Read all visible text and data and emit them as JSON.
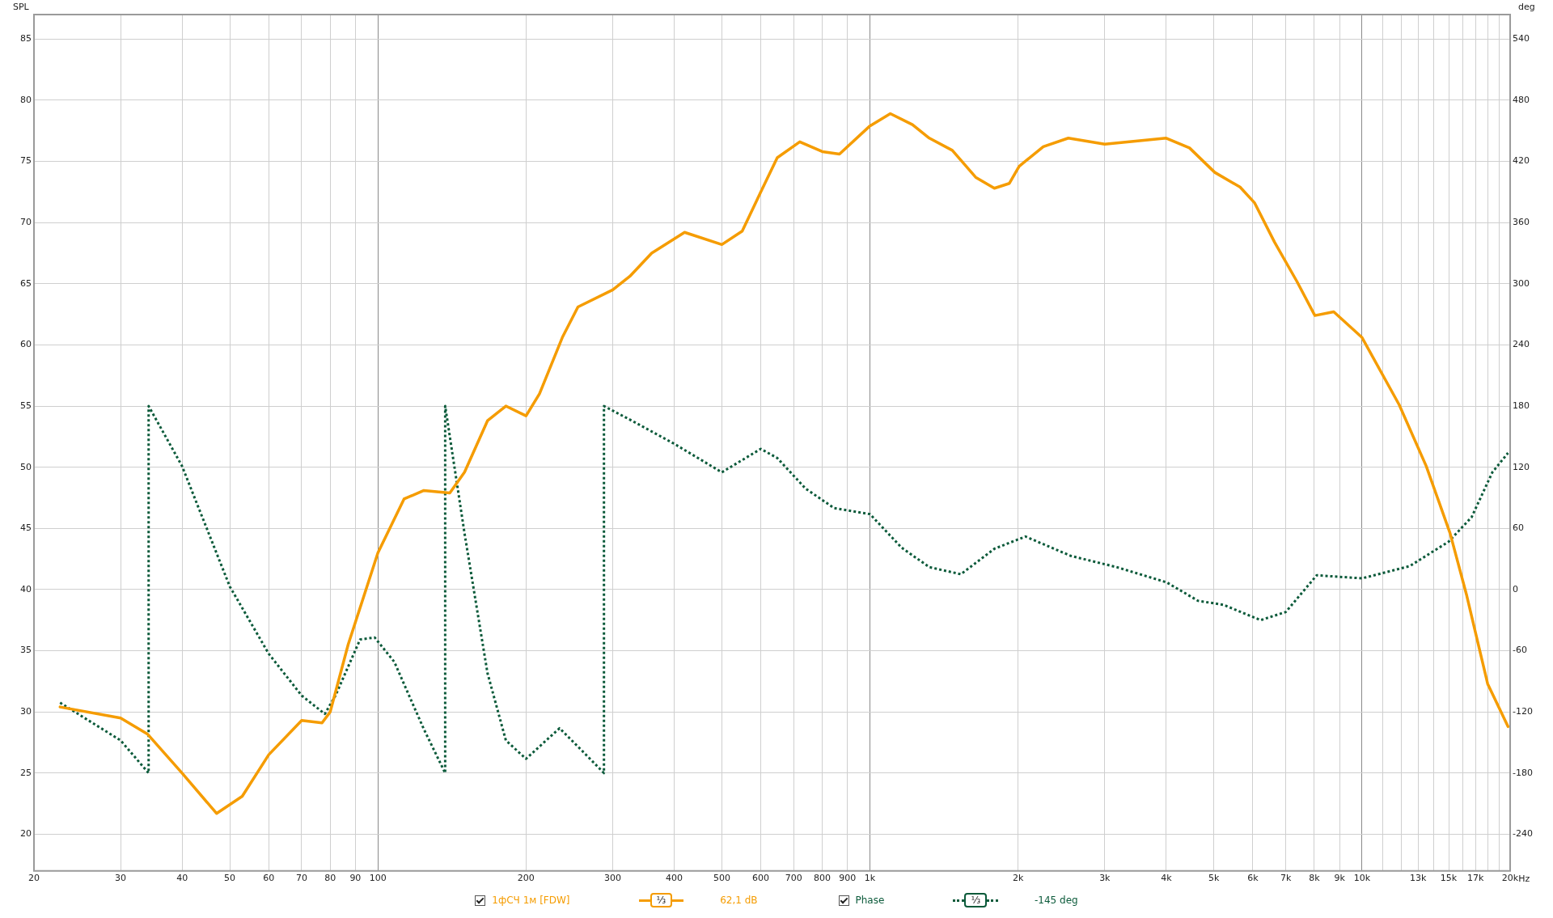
{
  "chart_data": {
    "type": "line",
    "ylabel": "SPL",
    "y2label": "deg",
    "log": "x",
    "grid": true,
    "legend": "bottom",
    "xlim": [
      20,
      20000
    ],
    "ylim": [
      17,
      87
    ],
    "y2lim": [
      -276,
      564
    ],
    "xticks": [
      20,
      30,
      40,
      50,
      60,
      70,
      80,
      90,
      100,
      200,
      300,
      400,
      500,
      600,
      700,
      800,
      900,
      {
        "value": 1000,
        "label": "1k"
      },
      {
        "value": 2000,
        "label": "2k"
      },
      {
        "value": 3000,
        "label": "3k"
      },
      {
        "value": 4000,
        "label": "4k"
      },
      {
        "value": 5000,
        "label": "5k"
      },
      {
        "value": 6000,
        "label": "6k"
      },
      {
        "value": 7000,
        "label": "7k"
      },
      {
        "value": 8000,
        "label": "8k"
      },
      {
        "value": 9000,
        "label": "9k"
      },
      {
        "value": 10000,
        "label": "10k"
      },
      {
        "value": 11000,
        "label": null
      },
      {
        "value": 12000,
        "label": null
      },
      {
        "value": 13000,
        "label": "13k"
      },
      {
        "value": 14000,
        "label": null
      },
      {
        "value": 15000,
        "label": "15k"
      },
      {
        "value": 16000,
        "label": null
      },
      {
        "value": 17000,
        "label": "17k"
      },
      {
        "value": 18000,
        "label": null
      },
      {
        "value": 19000,
        "label": null
      },
      {
        "value": 20000,
        "label": "20k"
      }
    ],
    "xlabel": "Hz",
    "yticks": [
      20,
      25,
      30,
      35,
      40,
      45,
      50,
      55,
      60,
      65,
      70,
      75,
      80,
      85
    ],
    "y2ticks": [
      -240,
      -180,
      -120,
      -60,
      0,
      60,
      120,
      180,
      240,
      300,
      360,
      420,
      480,
      540
    ],
    "annotations": [
      "⅓",
      "62,1 dB",
      "⅓",
      "-145 deg"
    ],
    "series": [
      {
        "name": "1фСЧ 1м [FDW]",
        "color": "#f59c00",
        "line_style": "solid",
        "x": [
          22.6,
          30,
          34,
          40,
          47,
          53,
          60,
          70,
          77,
          80,
          87,
          100,
          113,
          124,
          140,
          150,
          167,
          182,
          200,
          213,
          237,
          255,
          300,
          325,
          360,
          420,
          500,
          550,
          600,
          648,
          720,
          800,
          867,
          1000,
          1100,
          1220,
          1320,
          1470,
          1640,
          1790,
          1920,
          2010,
          2250,
          2530,
          3000,
          4000,
          4460,
          5020,
          5650,
          6050,
          6640,
          7370,
          8020,
          8760,
          10000,
          11900,
          13500,
          15100,
          16300,
          18000,
          19800
        ],
        "values": [
          30.4,
          29.5,
          28.2,
          25.0,
          21.7,
          23.1,
          26.5,
          29.3,
          29.1,
          30.0,
          35.5,
          43.0,
          47.4,
          48.1,
          47.9,
          49.6,
          53.8,
          55.0,
          54.2,
          56.0,
          60.6,
          63.1,
          64.5,
          65.6,
          67.5,
          69.2,
          68.2,
          69.3,
          72.5,
          75.3,
          76.6,
          75.8,
          75.6,
          77.9,
          78.9,
          78.0,
          76.9,
          75.9,
          73.7,
          72.8,
          73.2,
          74.6,
          76.2,
          76.9,
          76.4,
          76.9,
          76.1,
          74.1,
          72.9,
          71.6,
          68.4,
          65.2,
          62.4,
          62.7,
          60.6,
          55.1,
          50.1,
          44.6,
          39.6,
          32.3,
          28.8
        ]
      },
      {
        "name": "Phase",
        "axis": "y2",
        "color": "#0b5a3a",
        "line_style": "dotted",
        "x": [
          22.6,
          30,
          34.2,
          34.2,
          40,
          50,
          60,
          70,
          78,
          82,
          92,
          98.5,
          108,
          124,
          137,
          137,
          150,
          167,
          182,
          200,
          234,
          255,
          288,
          288,
          330,
          400,
          500,
          600,
          648,
          740,
          845,
          1000,
          1160,
          1320,
          1530,
          1790,
          2070,
          2560,
          3170,
          4010,
          4640,
          5230,
          6220,
          7000,
          8090,
          10000,
          12500,
          15000,
          16700,
          18400,
          19800
        ],
        "values": [
          -111,
          -148,
          -180,
          180,
          121,
          3,
          -63,
          -104,
          -122,
          -104,
          -49,
          -47,
          -71,
          -137,
          -180,
          180,
          55,
          -82,
          -148,
          -166,
          -136,
          -154,
          -180,
          180,
          165,
          143,
          115,
          138,
          129,
          99,
          80,
          74,
          41,
          22,
          15,
          40,
          52,
          33,
          22,
          7,
          -11,
          -15,
          -30,
          -22,
          14,
          11,
          23,
          47,
          71,
          115,
          134
        ]
      }
    ]
  }
}
